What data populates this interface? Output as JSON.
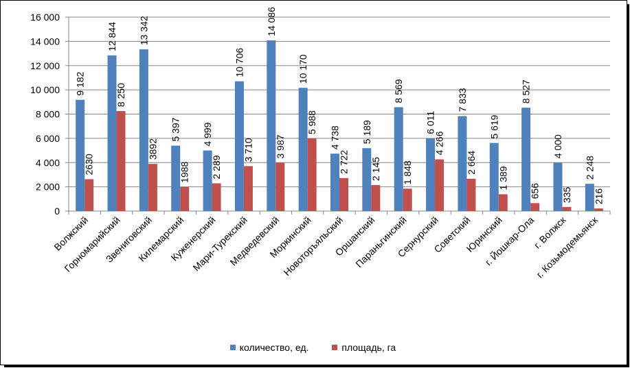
{
  "chart_data": {
    "type": "bar",
    "title": "",
    "xlabel": "",
    "ylabel": "",
    "ylim": [
      0,
      16000
    ],
    "yticks": [
      0,
      2000,
      4000,
      6000,
      8000,
      10000,
      12000,
      14000,
      16000
    ],
    "ytick_labels": [
      "0",
      "2 000",
      "4 000",
      "6 000",
      "8 000",
      "10 000",
      "12 000",
      "14 000",
      "16 000"
    ],
    "grid": "horizontal",
    "legend_position": "bottom",
    "categories": [
      "Волжский",
      "Горномарийский",
      "Звениговский",
      "Килемарский",
      "Куженерский",
      "Мари-Турекский",
      "Медведевский",
      "Моркинский",
      "Новоторъяльский",
      "Оршанский",
      "Параньгинский",
      "Сернурский",
      "Советский",
      "Юринский",
      "г. Йошкар-Ола",
      "г. Волжск",
      "г. Козьмодемьянск"
    ],
    "series": [
      {
        "name": "количество, ед.",
        "color": "#4F81BD",
        "values": [
          9182,
          12844,
          13342,
          5397,
          4999,
          10706,
          14086,
          10170,
          4738,
          5189,
          8569,
          6011,
          7833,
          5619,
          8527,
          4000,
          2248
        ],
        "labels": [
          "9 182",
          "12 844",
          "13 342",
          "5 397",
          "4 999",
          "10 706",
          "14 086",
          "10 170",
          "4 738",
          "5 189",
          "8 569",
          "6 011",
          "7 833",
          "5 619",
          "8 527",
          "4 000",
          "2 248"
        ]
      },
      {
        "name": "площадь, га",
        "color": "#C0504D",
        "values": [
          2630,
          8250,
          3892,
          1988,
          2289,
          3710,
          3987,
          5988,
          2722,
          2145,
          1848,
          4266,
          2664,
          1389,
          656,
          335,
          216
        ],
        "labels": [
          "2630",
          "8 250",
          "3892",
          "1988",
          "2 289",
          "3 710",
          "3 987",
          "5 988",
          "2 722",
          "2 145",
          "1 848",
          "4 266",
          "2 664",
          "1 389",
          "656",
          "335",
          "216"
        ]
      }
    ]
  }
}
